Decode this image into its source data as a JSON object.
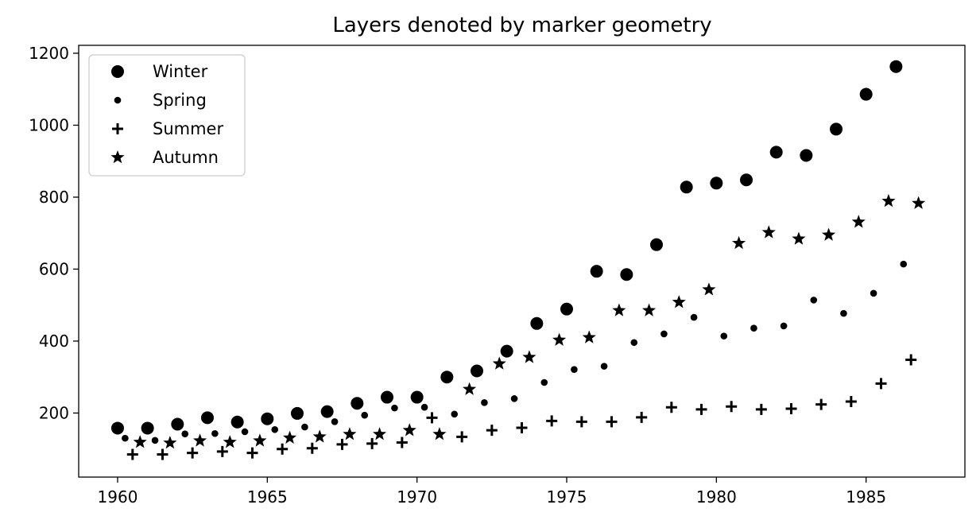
{
  "chart_data": {
    "type": "scatter",
    "title": "Layers denoted by marker geometry",
    "xlabel": "",
    "ylabel": "",
    "xlim": [
      1958.7,
      1988.3
    ],
    "ylim": [
      22,
      1222
    ],
    "xticks": [
      1960,
      1965,
      1970,
      1975,
      1980,
      1985
    ],
    "yticks": [
      200,
      400,
      600,
      800,
      1000,
      1200
    ],
    "grid": false,
    "legend": "top-left",
    "marker_color": "#000000",
    "series": [
      {
        "name": "Winter",
        "marker": "large-circle",
        "x": [
          1960,
          1961,
          1962,
          1963,
          1964,
          1965,
          1966,
          1967,
          1968,
          1969,
          1970,
          1971,
          1972,
          1973,
          1974,
          1975,
          1976,
          1977,
          1978,
          1979,
          1980,
          1981,
          1982,
          1983,
          1984,
          1985,
          1986
        ],
        "y": [
          158,
          158,
          169,
          187,
          175,
          184,
          199,
          204,
          227,
          244,
          244,
          300,
          317,
          372,
          449,
          489,
          594,
          585,
          668,
          828,
          839,
          848,
          925,
          916,
          989,
          1086,
          1163
        ]
      },
      {
        "name": "Spring",
        "marker": "small-circle",
        "x": [
          1960.25,
          1961.25,
          1962.25,
          1963.25,
          1964.25,
          1965.25,
          1966.25,
          1967.25,
          1968.25,
          1969.25,
          1970.25,
          1971.25,
          1972.25,
          1973.25,
          1974.25,
          1975.25,
          1976.25,
          1977.25,
          1978.25,
          1979.25,
          1980.25,
          1981.25,
          1982.25,
          1983.25,
          1984.25,
          1985.25,
          1986.25
        ],
        "y": [
          130,
          124,
          142,
          143,
          148,
          154,
          161,
          176,
          194,
          214,
          216,
          197,
          229,
          240,
          285,
          321,
          330,
          396,
          420,
          466,
          414,
          436,
          442,
          514,
          477,
          533,
          614
        ]
      },
      {
        "name": "Summer",
        "marker": "plus",
        "x": [
          1960.5,
          1961.5,
          1962.5,
          1963.5,
          1964.5,
          1965.5,
          1966.5,
          1967.5,
          1968.5,
          1969.5,
          1970.5,
          1971.5,
          1972.5,
          1973.5,
          1974.5,
          1975.5,
          1976.5,
          1977.5,
          1978.5,
          1979.5,
          1980.5,
          1981.5,
          1982.5,
          1983.5,
          1984.5,
          1985.5,
          1986.5
        ],
        "y": [
          85,
          85,
          89,
          93,
          89,
          100,
          102,
          113,
          115,
          118,
          187,
          134,
          152,
          159,
          178,
          176,
          176,
          188,
          216,
          210,
          218,
          210,
          212,
          224,
          232,
          282,
          348
        ]
      },
      {
        "name": "Autumn",
        "marker": "star",
        "x": [
          1960.75,
          1961.75,
          1962.75,
          1963.75,
          1964.75,
          1965.75,
          1966.75,
          1967.75,
          1968.75,
          1969.75,
          1970.75,
          1971.75,
          1972.75,
          1973.75,
          1974.75,
          1975.75,
          1976.75,
          1977.75,
          1978.75,
          1979.75,
          1980.75,
          1981.75,
          1982.75,
          1983.75,
          1984.75,
          1985.75,
          1986.75
        ],
        "y": [
          119,
          117,
          123,
          119,
          123,
          131,
          134,
          141,
          141,
          152,
          141,
          266,
          337,
          355,
          403,
          410,
          485,
          485,
          508,
          543,
          672,
          702,
          684,
          695,
          731,
          789,
          783
        ]
      }
    ]
  }
}
